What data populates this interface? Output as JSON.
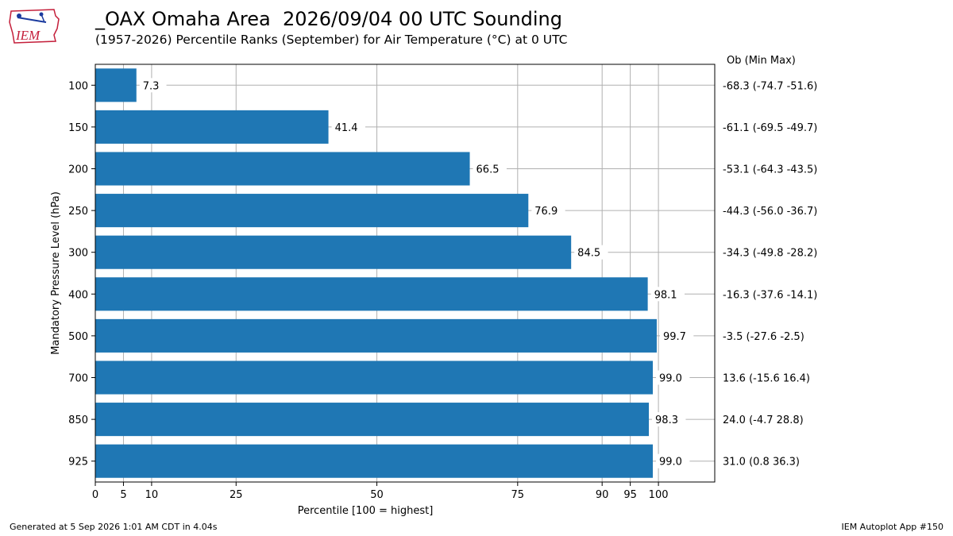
{
  "header": {
    "title": "_OAX Omaha Area  2026/09/04 00 UTC Sounding",
    "subtitle": "(1957-2026) Percentile Ranks (September) for Air Temperature (°C) at 0 UTC",
    "logo_text": "IEM"
  },
  "footer": {
    "generated": "Generated at 5 Sep 2026 1:01 AM CDT in 4.04s",
    "app": "IEM Autoplot App #150"
  },
  "chart_data": {
    "type": "bar",
    "orientation": "horizontal",
    "categories": [
      "100",
      "150",
      "200",
      "250",
      "300",
      "400",
      "500",
      "700",
      "850",
      "925"
    ],
    "values": [
      7.3,
      41.4,
      66.5,
      76.9,
      84.5,
      98.1,
      99.7,
      99.0,
      98.3,
      99.0
    ],
    "value_labels": [
      "7.3",
      "41.4",
      "66.5",
      "76.9",
      "84.5",
      "98.1",
      "99.7",
      "99.0",
      "98.3",
      "99.0"
    ],
    "right_labels": [
      "-68.3 (-74.7 -51.6)",
      "-61.1 (-69.5 -49.7)",
      "-53.1 (-64.3 -43.5)",
      "-44.3 (-56.0 -36.7)",
      "-34.3 (-49.8 -28.2)",
      "-16.3 (-37.6 -14.1)",
      "-3.5 (-27.6 -2.5)",
      "13.6 (-15.6 16.4)",
      "24.0 (-4.7 28.8)",
      "31.0 (0.8 36.3)"
    ],
    "right_header": "Ob  (Min  Max)",
    "xlabel": "Percentile [100 = highest]",
    "ylabel": "Mandatory Pressure Level (hPa)",
    "xticks": [
      0,
      5,
      10,
      25,
      50,
      75,
      90,
      95,
      100
    ],
    "xlim": [
      0,
      110
    ],
    "grid": true,
    "bar_color": "#1f77b4"
  }
}
